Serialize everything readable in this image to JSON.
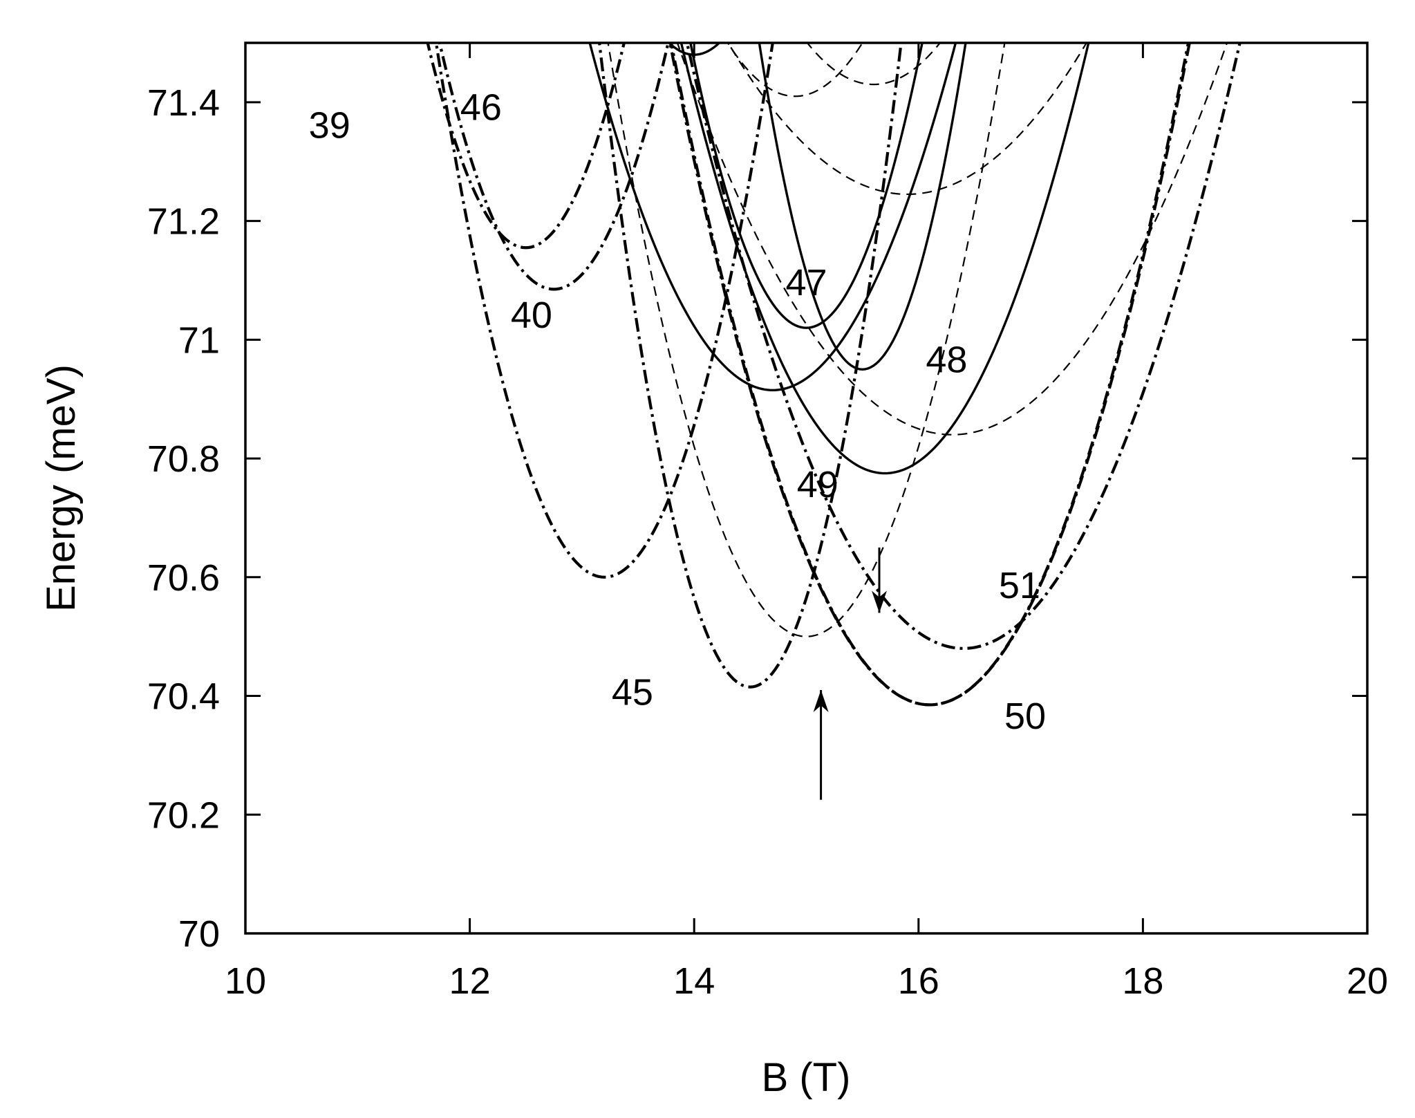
{
  "chart_data": {
    "type": "line",
    "title": "",
    "xlabel": "B (T)",
    "ylabel": "Energy (meV)",
    "xlim": [
      10,
      20
    ],
    "ylim": [
      70,
      71.5
    ],
    "x_ticks": [
      10,
      12,
      14,
      16,
      18,
      20
    ],
    "x_tick_labels": [
      "10",
      "12",
      "14",
      "16",
      "18",
      "20"
    ],
    "y_ticks": [
      70,
      70.2,
      70.4,
      70.6,
      70.8,
      71,
      71.2,
      71.4
    ],
    "y_tick_labels": [
      "70",
      "70.2",
      "70.4",
      "70.6",
      "70.8",
      "71",
      "71.2",
      "71.4"
    ],
    "grid": false,
    "legend": "none",
    "line_styles": {
      "solid": "solid",
      "dashed": "dashed",
      "dashdot": "dash-dot"
    },
    "series": [
      {
        "label": "45",
        "style": "dashdot",
        "min_x": 14.5,
        "min_y": 70.415,
        "curvature": 0.6
      },
      {
        "label": "50",
        "style": "dashdot",
        "min_x": 16.1,
        "min_y": 70.385,
        "curvature": 0.208
      },
      {
        "label": "51",
        "style": "dashdot",
        "min_x": 16.4,
        "min_y": 70.48,
        "curvature": 0.168
      },
      {
        "label": "",
        "style": "dashdot",
        "min_x": 16.1,
        "min_y": 70.385,
        "curvature": 0.21
      },
      {
        "label": "",
        "style": "dashdot",
        "min_x": 13.2,
        "min_y": 70.6,
        "curvature": 0.4
      },
      {
        "label": "",
        "style": "dashdot",
        "min_x": 12.75,
        "min_y": 71.085,
        "curvature": 0.4
      },
      {
        "label": "",
        "style": "dashdot",
        "min_x": 12.5,
        "min_y": 71.155,
        "curvature": 0.45
      },
      {
        "label": "49",
        "style": "solid",
        "min_x": 15.7,
        "min_y": 70.775,
        "curvature": 0.22
      },
      {
        "label": "",
        "style": "solid",
        "min_x": 14.7,
        "min_y": 70.915,
        "curvature": 0.22
      },
      {
        "label": "48",
        "style": "solid",
        "min_x": 15.5,
        "min_y": 70.95,
        "curvature": 0.65
      },
      {
        "label": "47",
        "style": "solid",
        "min_x": 15.0,
        "min_y": 71.02,
        "curvature": 0.45
      },
      {
        "label": "",
        "style": "solid",
        "min_x": 14.0,
        "min_y": 71.48,
        "curvature": 0.4
      },
      {
        "label": "",
        "style": "dashed",
        "min_x": 16.3,
        "min_y": 70.84,
        "curvature": 0.11
      },
      {
        "label": "",
        "style": "dashed",
        "min_x": 15.0,
        "min_y": 70.5,
        "curvature": 0.32
      },
      {
        "label": "",
        "style": "dashed",
        "min_x": 15.9,
        "min_y": 71.245,
        "curvature": 0.1
      },
      {
        "label": "",
        "style": "dashed",
        "min_x": 15.6,
        "min_y": 71.43,
        "curvature": 0.2
      },
      {
        "label": "",
        "style": "dashed",
        "min_x": 14.9,
        "min_y": 71.41,
        "curvature": 0.25
      }
    ],
    "curve_labels": [
      {
        "text": "39",
        "x": 10.75,
        "y": 71.34
      },
      {
        "text": "46",
        "x": 12.1,
        "y": 71.37
      },
      {
        "text": "40",
        "x": 12.55,
        "y": 71.02
      },
      {
        "text": "47",
        "x": 15.0,
        "y": 71.075
      },
      {
        "text": "48",
        "x": 16.25,
        "y": 70.945
      },
      {
        "text": "49",
        "x": 15.1,
        "y": 70.735
      },
      {
        "text": "51",
        "x": 16.9,
        "y": 70.565
      },
      {
        "text": "45",
        "x": 13.45,
        "y": 70.385
      },
      {
        "text": "50",
        "x": 16.95,
        "y": 70.345
      }
    ],
    "annotations": [
      {
        "type": "arrow",
        "direction": "down",
        "x": 15.65,
        "y_from": 70.65,
        "y_to": 70.54
      },
      {
        "type": "arrow",
        "direction": "up",
        "x": 15.13,
        "y_from": 70.225,
        "y_to": 70.41
      }
    ]
  }
}
